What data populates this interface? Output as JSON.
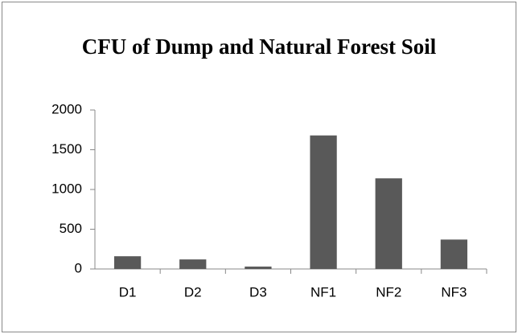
{
  "chart_data": {
    "type": "bar",
    "title": "CFU of Dump and Natural Forest Soil",
    "categories": [
      "D1",
      "D2",
      "D3",
      "NF1",
      "NF2",
      "NF3"
    ],
    "values": [
      160,
      120,
      30,
      1680,
      1140,
      370
    ],
    "color": "#595959",
    "ylim": [
      0,
      2000
    ],
    "yticks": [
      0,
      500,
      1000,
      1500,
      2000
    ],
    "grid": false
  }
}
